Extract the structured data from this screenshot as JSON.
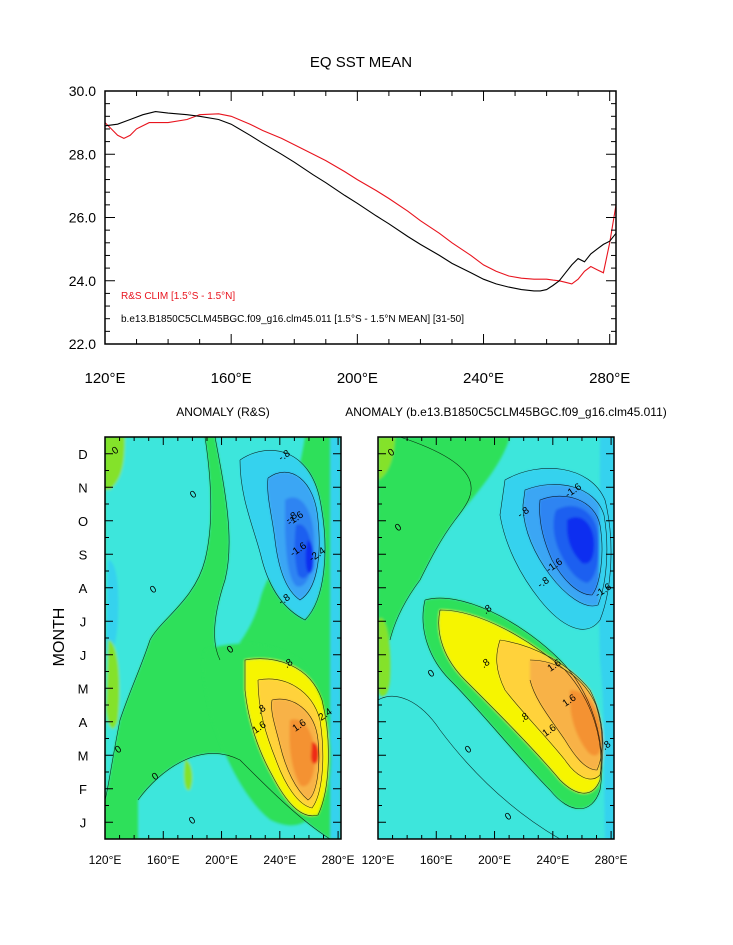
{
  "chart_data": [
    {
      "type": "line",
      "title": "EQ SST MEAN",
      "xlabel": "",
      "ylabel": "",
      "xlim": [
        120,
        282
      ],
      "ylim": [
        22,
        30
      ],
      "x_ticks": [
        120,
        160,
        200,
        240,
        280
      ],
      "x_tick_labels": [
        "120°E",
        "160°E",
        "200°E",
        "240°E",
        "280°E"
      ],
      "y_ticks": [
        22,
        24,
        26,
        28,
        30
      ],
      "y_tick_labels": [
        "22.0",
        "24.0",
        "26.0",
        "28.0",
        "30.0"
      ],
      "grid": false,
      "series": [
        {
          "name": "R&S CLIM [1.5°S - 1.5°N]",
          "color": "#e8141e",
          "x": [
            120,
            122,
            124,
            126,
            128,
            130,
            134,
            140,
            146,
            150,
            156,
            160,
            166,
            170,
            176,
            180,
            186,
            190,
            196,
            200,
            206,
            210,
            216,
            220,
            226,
            230,
            236,
            240,
            244,
            248,
            252,
            256,
            260,
            262,
            264,
            266,
            268,
            270,
            272,
            274,
            276,
            278,
            280,
            282
          ],
          "y": [
            29.0,
            28.8,
            28.6,
            28.5,
            28.6,
            28.8,
            29.0,
            29.0,
            29.1,
            29.25,
            29.28,
            29.2,
            28.95,
            28.75,
            28.5,
            28.3,
            28.0,
            27.8,
            27.45,
            27.2,
            26.85,
            26.6,
            26.2,
            25.9,
            25.5,
            25.2,
            24.8,
            24.5,
            24.3,
            24.15,
            24.08,
            24.05,
            24.05,
            24.02,
            24.0,
            23.95,
            23.9,
            24.05,
            24.3,
            24.45,
            24.35,
            24.25,
            25.2,
            26.4
          ]
        },
        {
          "name": "b.e13.B1850C5CLM45BGC.f09_g16.clm45.011 [1.5°S - 1.5°N MEAN] [31-50]",
          "color": "#000000",
          "x": [
            120,
            124,
            128,
            132,
            136,
            140,
            146,
            150,
            156,
            160,
            166,
            170,
            176,
            180,
            186,
            190,
            196,
            200,
            206,
            210,
            216,
            220,
            226,
            230,
            236,
            240,
            244,
            248,
            252,
            256,
            258,
            260,
            262,
            264,
            266,
            268,
            270,
            272,
            274,
            276,
            278,
            280,
            282
          ],
          "y": [
            28.9,
            28.95,
            29.1,
            29.25,
            29.35,
            29.3,
            29.25,
            29.2,
            29.1,
            28.95,
            28.6,
            28.35,
            28.0,
            27.75,
            27.35,
            27.1,
            26.7,
            26.45,
            26.05,
            25.8,
            25.4,
            25.15,
            24.8,
            24.55,
            24.25,
            24.05,
            23.9,
            23.8,
            23.72,
            23.68,
            23.68,
            23.72,
            23.85,
            24.0,
            24.25,
            24.5,
            24.7,
            24.6,
            24.85,
            25.0,
            25.15,
            25.25,
            25.5
          ]
        }
      ]
    },
    {
      "type": "heatmap",
      "title": "ANOMALY (R&S)",
      "xlabel": "",
      "ylabel": "MONTH",
      "x_tick_labels": [
        "120°E",
        "160°E",
        "200°E",
        "240°E",
        "280°E"
      ],
      "y_tick_labels": [
        "J",
        "F",
        "M",
        "A",
        "M",
        "J",
        "J",
        "A",
        "S",
        "O",
        "N",
        "D"
      ],
      "contour_labels": [
        "0",
        "0",
        "0",
        "0",
        "0",
        "0",
        "0",
        "-.8",
        "-.8",
        "-.8",
        "-1.6",
        "-1.6",
        "-2.4",
        ".8",
        ".8",
        "1.6",
        "1.6",
        "2.4"
      ]
    },
    {
      "type": "heatmap",
      "title": "ANOMALY (b.e13.B1850C5CLM45BGC.f09_g16.clm45.011)",
      "xlabel": "",
      "ylabel": "",
      "x_tick_labels": [
        "120°E",
        "160°E",
        "200°E",
        "240°E",
        "280°E"
      ],
      "y_tick_labels": [],
      "contour_labels": [
        "0",
        "0",
        "0",
        "0",
        "0",
        "-.8",
        "-.8",
        "-1.6",
        "-1.6",
        "-1.6",
        ".8",
        ".8",
        ".8",
        "1.6",
        "1.6",
        "1.6",
        ".8"
      ]
    }
  ],
  "colors": {
    "clim_line": "#e8141e",
    "model_line": "#000000",
    "palette": [
      "#0a2ef0",
      "#1e5ff0",
      "#2f84f2",
      "#3aa6f4",
      "#36d2ee",
      "#3de6dc",
      "#2ee05a",
      "#84e22a",
      "#f6f500",
      "#ffd23a",
      "#f8b246",
      "#f49232",
      "#ee2a18"
    ]
  }
}
